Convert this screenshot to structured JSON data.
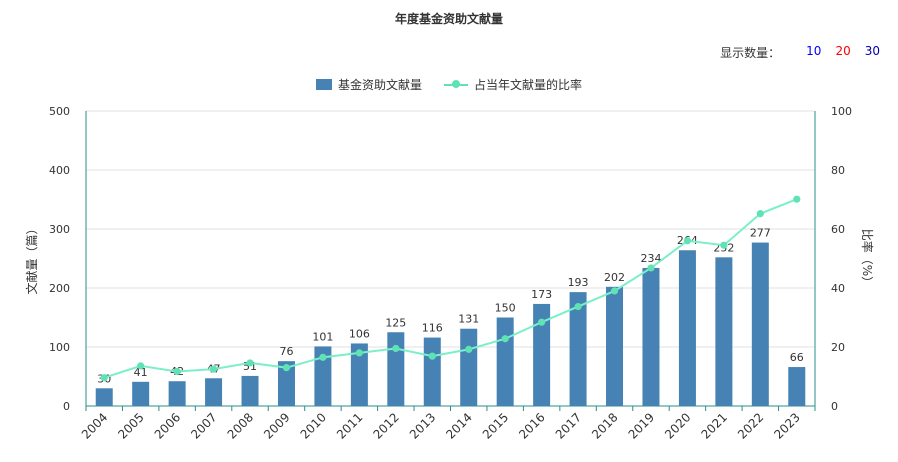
{
  "header": {
    "title": "年度基金资助文献量"
  },
  "display_count": {
    "label": "显示数量：",
    "options": [
      {
        "label": "10",
        "color": "#0000ff"
      },
      {
        "label": "20",
        "color": "#ff0000"
      },
      {
        "label": "30",
        "color": "#0000aa"
      }
    ]
  },
  "legend": {
    "bar_label": "基金资助文献量",
    "line_label": "占当年文献量的比率"
  },
  "colors": {
    "bar": "#4682b4",
    "line": "#7bf0c8",
    "line_stroke": "#5fe3b5"
  },
  "chart_data": {
    "type": "bar",
    "categories": [
      "2004",
      "2005",
      "2006",
      "2007",
      "2008",
      "2009",
      "2010",
      "2011",
      "2012",
      "2013",
      "2014",
      "2015",
      "2016",
      "2017",
      "2018",
      "2019",
      "2020",
      "2021",
      "2022",
      "2023"
    ],
    "series": [
      {
        "name": "基金资助文献量",
        "type": "bar",
        "axis": "left",
        "values": [
          30,
          41,
          42,
          47,
          51,
          76,
          101,
          106,
          125,
          116,
          131,
          150,
          173,
          193,
          202,
          234,
          264,
          252,
          277,
          66
        ]
      },
      {
        "name": "占当年文献量的比率",
        "type": "line",
        "axis": "right",
        "values": [
          9.6,
          13.6,
          11.7,
          12.5,
          14.6,
          13.0,
          16.5,
          18.0,
          19.5,
          16.9,
          19.2,
          22.8,
          28.4,
          33.7,
          39.0,
          46.8,
          56.0,
          54.5,
          65.2,
          70.1
        ]
      }
    ],
    "ylabel_left": "文献量（篇）",
    "ylabel_right": "比率（%）",
    "ylim_left": [
      0,
      500
    ],
    "ylim_right": [
      0,
      100
    ],
    "yticks_left": [
      "0",
      "100",
      "200",
      "300",
      "400",
      "500"
    ],
    "yticks_right": [
      "0",
      "20",
      "40",
      "60",
      "80",
      "100"
    ],
    "grid": true,
    "legend_position": "top-center"
  }
}
